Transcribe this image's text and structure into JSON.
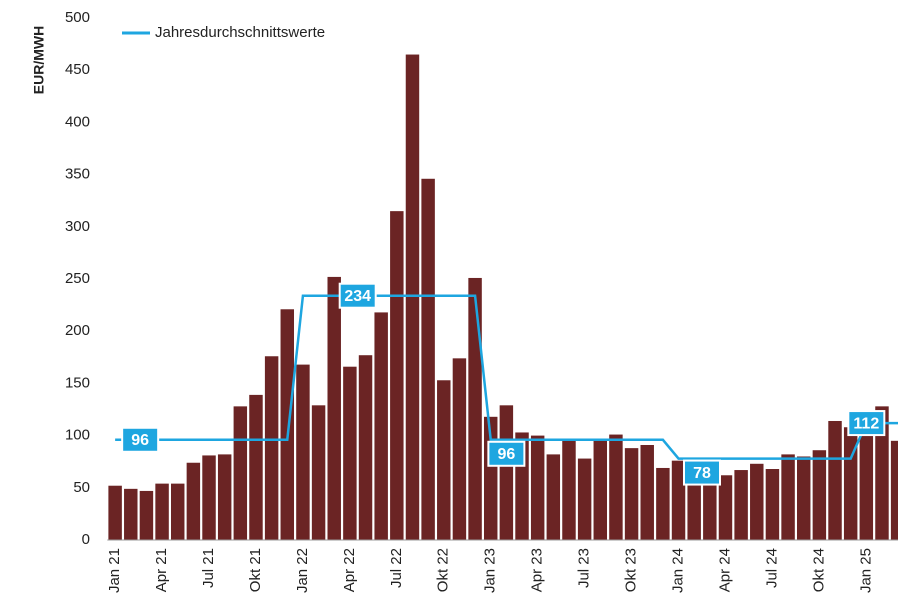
{
  "chart_data": {
    "type": "bar",
    "ylabel": "EUR/MWH",
    "categories": [
      "Jan 21",
      null,
      null,
      "Apr 21",
      null,
      null,
      "Jul 21",
      null,
      null,
      "Okt 21",
      null,
      null,
      "Jan 22",
      null,
      null,
      "Apr 22",
      null,
      null,
      "Jul 22",
      null,
      null,
      "Okt 22",
      null,
      null,
      "Jan 23",
      null,
      null,
      "Apr 23",
      null,
      null,
      "Jul 23",
      null,
      null,
      "Okt 23",
      null,
      null,
      "Jan 24",
      null,
      null,
      "Apr 24",
      null,
      null,
      "Jul 24",
      null,
      null,
      "Okt 24",
      null,
      null,
      "Jan 25",
      null,
      null
    ],
    "values": [
      52,
      49,
      47,
      54,
      54,
      74,
      81,
      82,
      128,
      139,
      176,
      221,
      168,
      129,
      252,
      166,
      177,
      218,
      315,
      465,
      346,
      153,
      174,
      251,
      118,
      129,
      103,
      100,
      82,
      95,
      78,
      96,
      101,
      88,
      91,
      69,
      76,
      62,
      60,
      62,
      67,
      73,
      68,
      82,
      80,
      86,
      114,
      108,
      104,
      128,
      95
    ],
    "color": "#6b2424",
    "line_series": {
      "name": "Jahresdurchschnittswerte",
      "color": "#1ea6e0",
      "values": [
        96,
        96,
        96,
        96,
        96,
        96,
        96,
        96,
        96,
        96,
        96,
        96,
        234,
        234,
        234,
        234,
        234,
        234,
        234,
        234,
        234,
        234,
        234,
        234,
        96,
        96,
        96,
        96,
        96,
        96,
        96,
        96,
        96,
        96,
        96,
        96,
        78,
        78,
        78,
        78,
        78,
        78,
        78,
        78,
        78,
        78,
        78,
        78,
        112,
        112,
        112
      ]
    },
    "ylim": [
      0,
      500
    ],
    "yticks": [
      0,
      50,
      100,
      150,
      200,
      250,
      300,
      350,
      400,
      450,
      500
    ],
    "grid": false
  }
}
